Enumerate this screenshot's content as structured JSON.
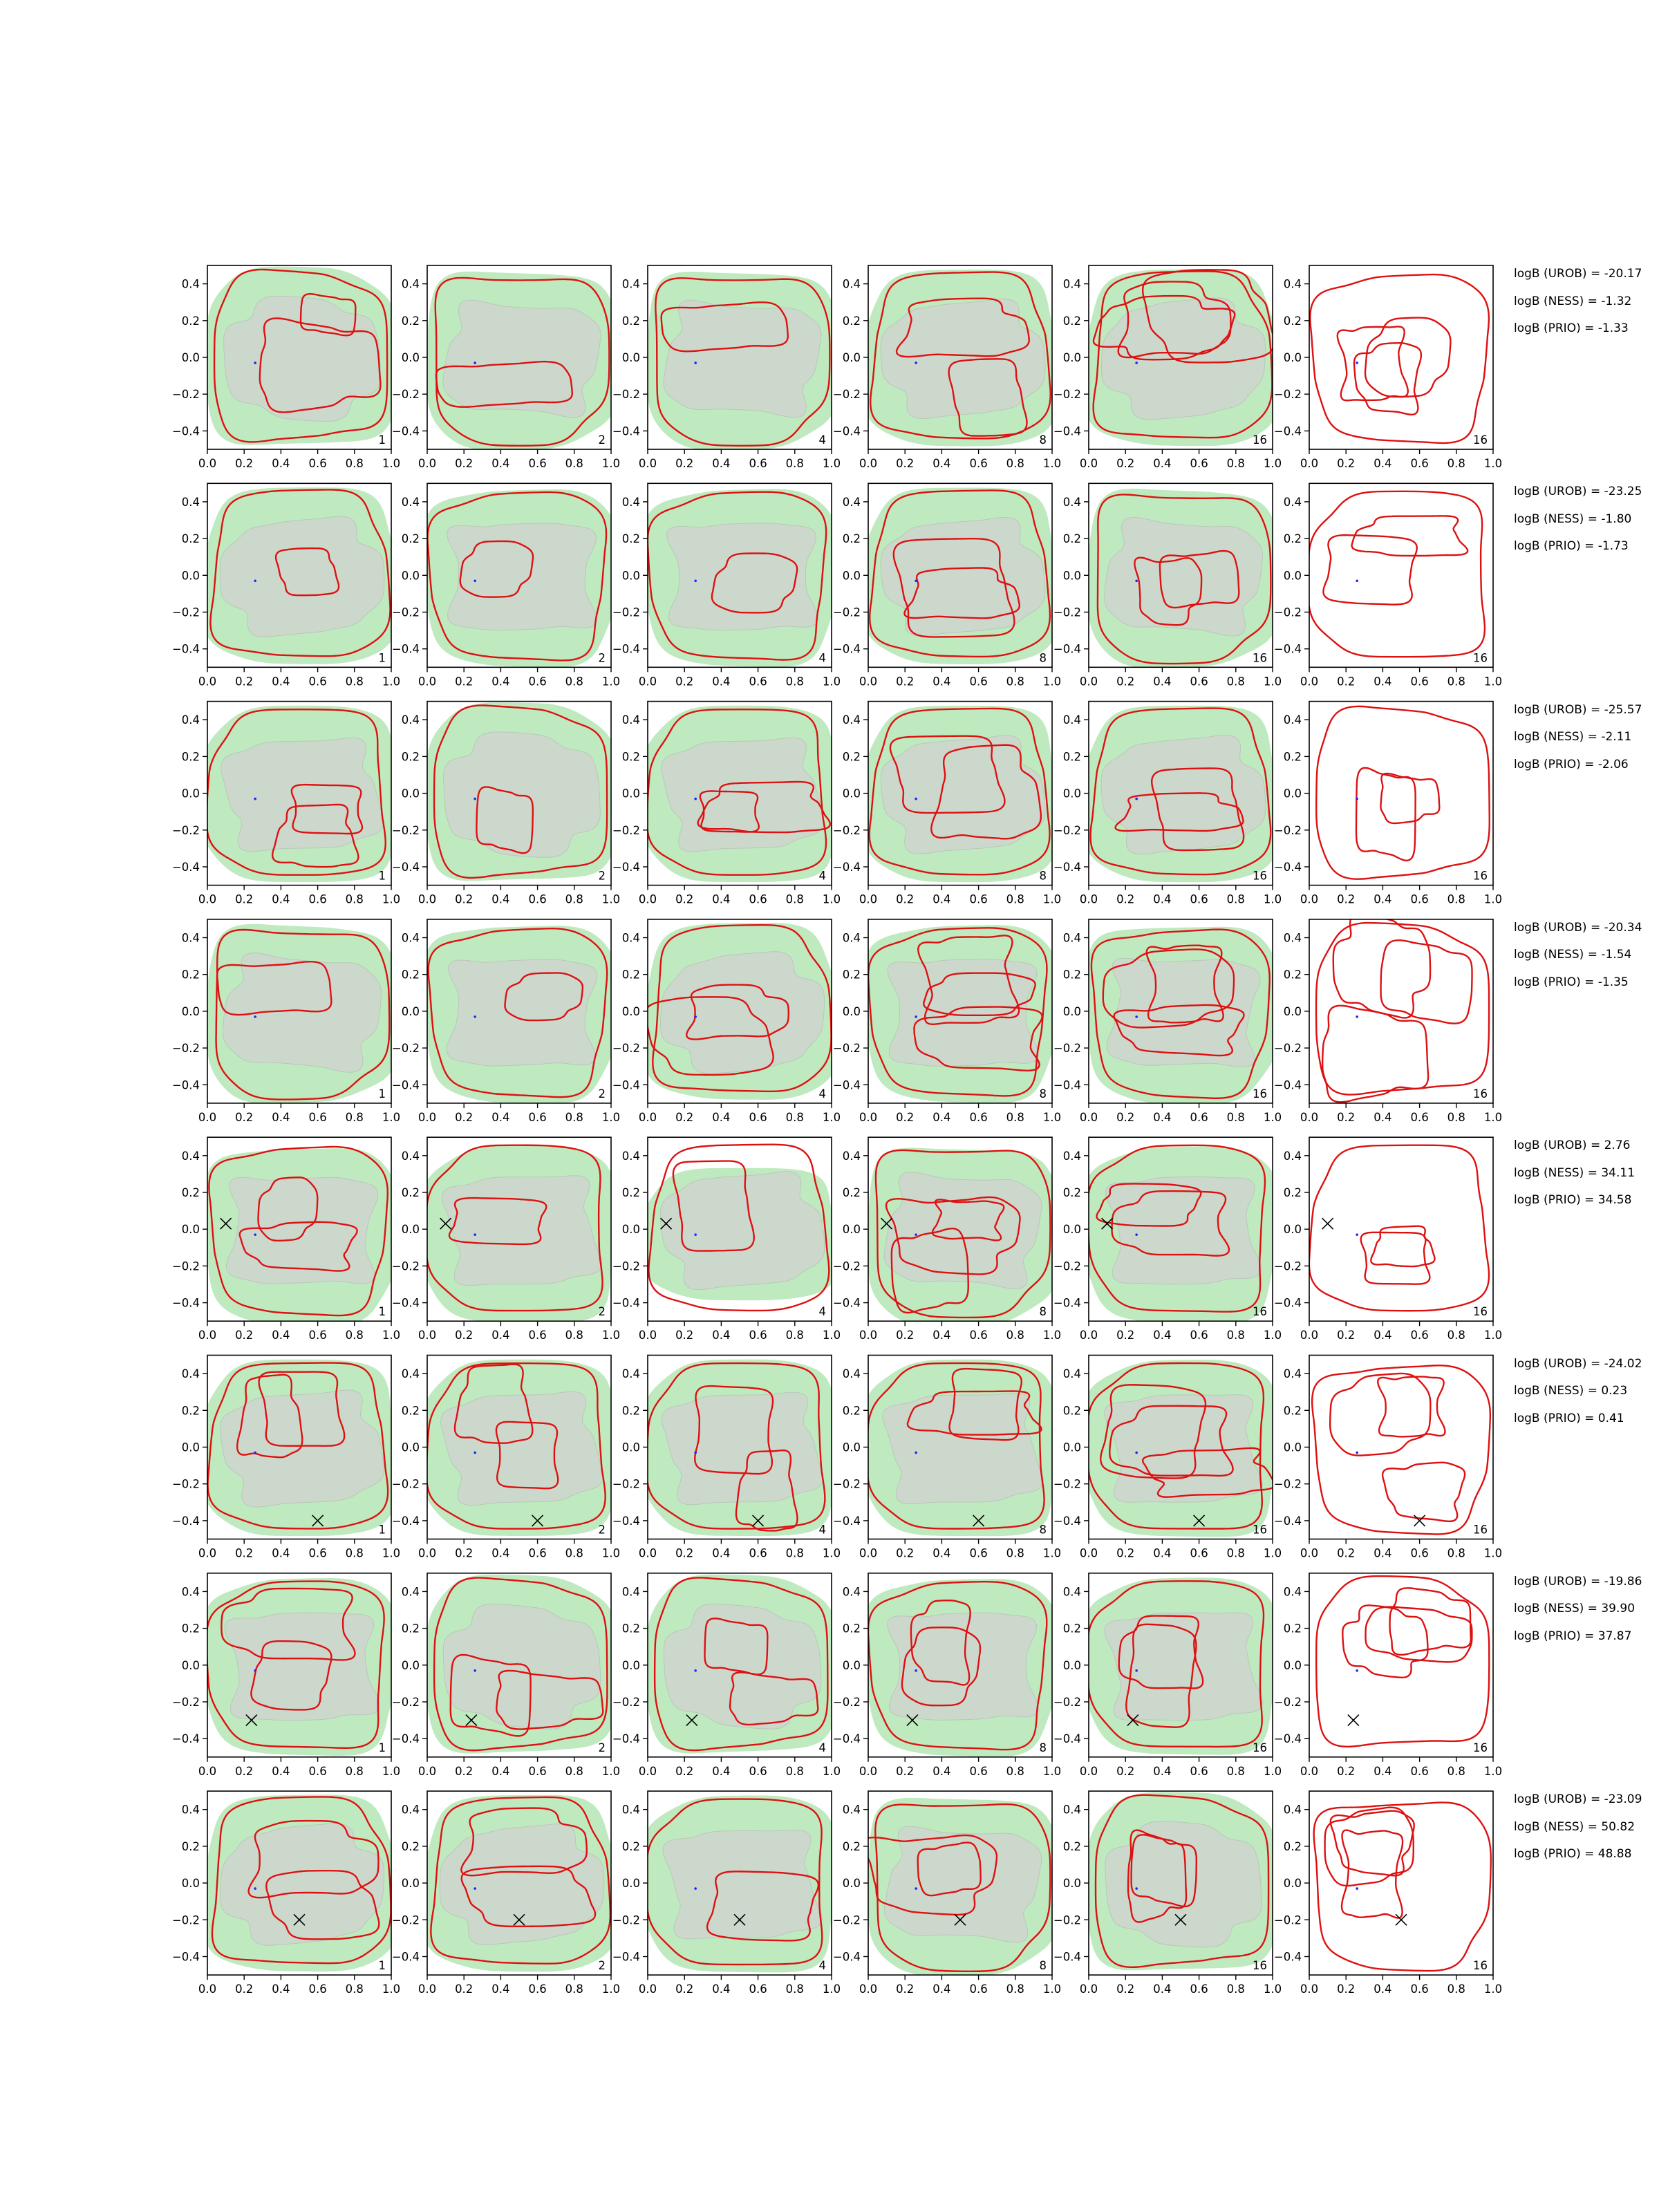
{
  "chart_data": {
    "type": "contour-grid",
    "rows": 8,
    "columns": 6,
    "x_ticks": [
      "0.0",
      "0.2",
      "0.4",
      "0.6",
      "0.8",
      "1.0"
    ],
    "y_ticks": [
      "0.4",
      "0.2",
      "0.0",
      "−0.2",
      "−0.4"
    ],
    "xlim": [
      0,
      1
    ],
    "ylim": [
      -0.5,
      0.5
    ],
    "panel_labels": [
      "1",
      "2",
      "4",
      "8",
      "16",
      "16"
    ],
    "colors": {
      "fill_outer": "#bfeabf",
      "fill_inner": "#cdd8cd",
      "fill_inner_edge": "#b9c7b9",
      "contour": "#dd1111",
      "dot": "#2222ff",
      "marker": "#000000"
    },
    "rows_data": [
      {
        "logB_UROB": "logB (UROB) = -20.17",
        "logB_NESS": "logB (NESS) = -1.32",
        "logB_PRIO": "logB (PRIO) = -1.33",
        "dot": [
          0.26,
          -0.03
        ],
        "marker": null
      },
      {
        "logB_UROB": "logB (UROB) = -23.25",
        "logB_NESS": "logB (NESS) = -1.80",
        "logB_PRIO": "logB (PRIO) = -1.73",
        "dot": [
          0.26,
          -0.03
        ],
        "marker": null
      },
      {
        "logB_UROB": "logB (UROB) = -25.57",
        "logB_NESS": "logB (NESS) = -2.11",
        "logB_PRIO": "logB (PRIO) = -2.06",
        "dot": [
          0.26,
          -0.03
        ],
        "marker": null
      },
      {
        "logB_UROB": "logB (UROB) = -20.34",
        "logB_NESS": "logB (NESS) = -1.54",
        "logB_PRIO": "logB (PRIO) = -1.35",
        "dot": [
          0.26,
          -0.03
        ],
        "marker": null
      },
      {
        "logB_UROB": "logB (UROB) = 2.76",
        "logB_NESS": "logB (NESS) = 34.11",
        "logB_PRIO": "logB (PRIO) = 34.58",
        "dot": [
          0.26,
          -0.03
        ],
        "marker": [
          0.1,
          0.03
        ]
      },
      {
        "logB_UROB": "logB (UROB) = -24.02",
        "logB_NESS": "logB (NESS) = 0.23",
        "logB_PRIO": "logB (PRIO) = 0.41",
        "dot": [
          0.26,
          -0.03
        ],
        "marker": [
          0.6,
          -0.4
        ]
      },
      {
        "logB_UROB": "logB (UROB) = -19.86",
        "logB_NESS": "logB (NESS) = 39.90",
        "logB_PRIO": "logB (PRIO) = 37.87",
        "dot": [
          0.26,
          -0.03
        ],
        "marker": [
          0.24,
          -0.3
        ]
      },
      {
        "logB_UROB": "logB (UROB) = -23.09",
        "logB_NESS": "logB (NESS) = 50.82",
        "logB_PRIO": "logB (PRIO) = 48.88",
        "dot": [
          0.26,
          -0.03
        ],
        "marker": [
          0.5,
          -0.2
        ]
      }
    ]
  }
}
